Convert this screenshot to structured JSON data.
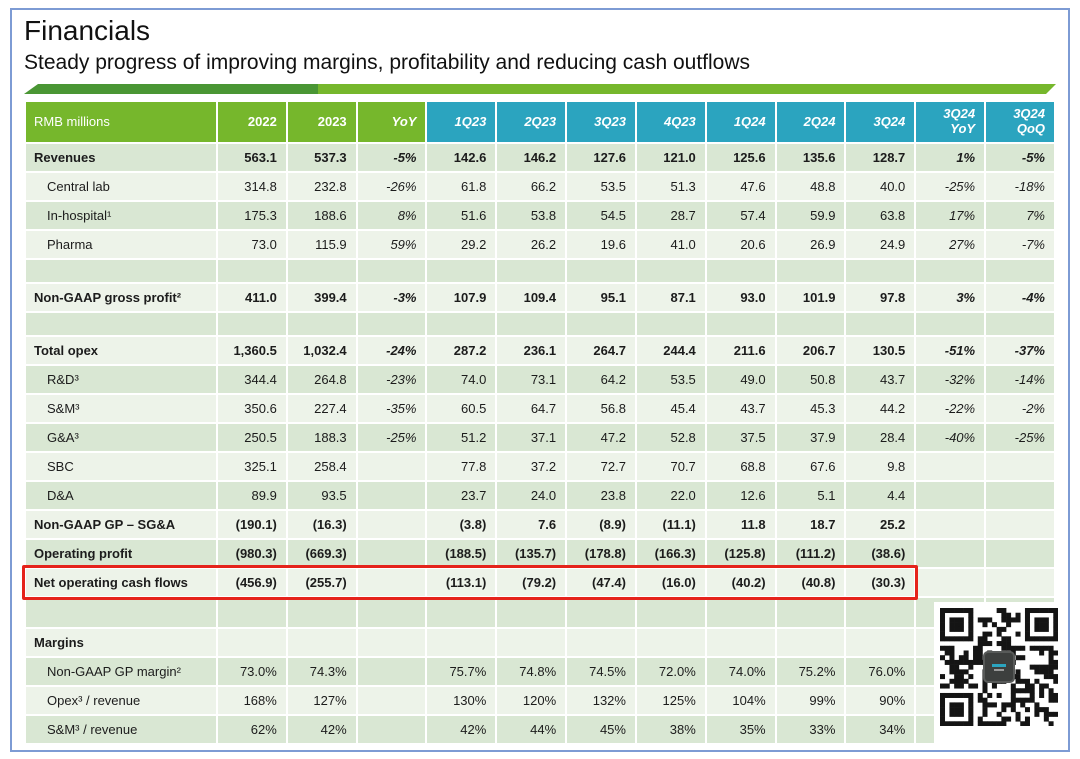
{
  "page": {
    "title": "Financials",
    "subtitle": "Steady progress of improving margins, profitability and reducing cash outflows"
  },
  "colors": {
    "header_green": "#76b72c",
    "header_teal": "#2ba4bf",
    "divider_dark_green": "#4a9634",
    "divider_light_green": "#76b72c",
    "row_stripe_dark": "#d9e7d3",
    "row_stripe_light": "#edf3e9",
    "highlight_red": "#e5231b",
    "page_border_blue": "#7d9bd4"
  },
  "table": {
    "columns": [
      {
        "label": "RMB millions",
        "group": "annual"
      },
      {
        "label": "2022",
        "group": "annual"
      },
      {
        "label": "2023",
        "group": "annual"
      },
      {
        "label": "YoY",
        "group": "annual",
        "italic": true,
        "value_italic": true
      },
      {
        "label": "1Q23",
        "group": "quarterly",
        "italic": true
      },
      {
        "label": "2Q23",
        "group": "quarterly",
        "italic": true
      },
      {
        "label": "3Q23",
        "group": "quarterly",
        "italic": true
      },
      {
        "label": "4Q23",
        "group": "quarterly",
        "italic": true
      },
      {
        "label": "1Q24",
        "group": "quarterly",
        "italic": true
      },
      {
        "label": "2Q24",
        "group": "quarterly",
        "italic": true
      },
      {
        "label": "3Q24",
        "group": "quarterly",
        "italic": true
      },
      {
        "label": "3Q24\nYoY",
        "group": "quarterly",
        "italic": true,
        "value_italic": true
      },
      {
        "label": "3Q24\nQoQ",
        "group": "quarterly",
        "italic": true,
        "value_italic": true
      }
    ],
    "rows": [
      {
        "label": "Revenues",
        "bold": true,
        "shade": "dark",
        "values": [
          "563.1",
          "537.3",
          "-5%",
          "142.6",
          "146.2",
          "127.6",
          "121.0",
          "125.6",
          "135.6",
          "128.7",
          "1%",
          "-5%"
        ]
      },
      {
        "label": "Central lab",
        "indent": true,
        "shade": "light",
        "values": [
          "314.8",
          "232.8",
          "-26%",
          "61.8",
          "66.2",
          "53.5",
          "51.3",
          "47.6",
          "48.8",
          "40.0",
          "-25%",
          "-18%"
        ]
      },
      {
        "label": "In-hospital¹",
        "indent": true,
        "shade": "dark",
        "values": [
          "175.3",
          "188.6",
          "8%",
          "51.6",
          "53.8",
          "54.5",
          "28.7",
          "57.4",
          "59.9",
          "63.8",
          "17%",
          "7%"
        ]
      },
      {
        "label": "Pharma",
        "indent": true,
        "shade": "light",
        "values": [
          "73.0",
          "115.9",
          "59%",
          "29.2",
          "26.2",
          "19.6",
          "41.0",
          "20.6",
          "26.9",
          "24.9",
          "27%",
          "-7%"
        ]
      },
      {
        "type": "spacer",
        "shade": "dark"
      },
      {
        "label": "Non-GAAP gross profit²",
        "bold": true,
        "shade": "light",
        "values": [
          "411.0",
          "399.4",
          "-3%",
          "107.9",
          "109.4",
          "95.1",
          "87.1",
          "93.0",
          "101.9",
          "97.8",
          "3%",
          "-4%"
        ]
      },
      {
        "type": "spacer",
        "shade": "dark"
      },
      {
        "label": "Total opex",
        "bold": true,
        "shade": "light",
        "values": [
          "1,360.5",
          "1,032.4",
          "-24%",
          "287.2",
          "236.1",
          "264.7",
          "244.4",
          "211.6",
          "206.7",
          "130.5",
          "-51%",
          "-37%"
        ]
      },
      {
        "label": "R&D³",
        "indent": true,
        "shade": "dark",
        "values": [
          "344.4",
          "264.8",
          "-23%",
          "74.0",
          "73.1",
          "64.2",
          "53.5",
          "49.0",
          "50.8",
          "43.7",
          "-32%",
          "-14%"
        ]
      },
      {
        "label": "S&M³",
        "indent": true,
        "shade": "light",
        "values": [
          "350.6",
          "227.4",
          "-35%",
          "60.5",
          "64.7",
          "56.8",
          "45.4",
          "43.7",
          "45.3",
          "44.2",
          "-22%",
          "-2%"
        ]
      },
      {
        "label": "G&A³",
        "indent": true,
        "shade": "dark",
        "values": [
          "250.5",
          "188.3",
          "-25%",
          "51.2",
          "37.1",
          "47.2",
          "52.8",
          "37.5",
          "37.9",
          "28.4",
          "-40%",
          "-25%"
        ]
      },
      {
        "label": "SBC",
        "indent": true,
        "shade": "light",
        "values": [
          "325.1",
          "258.4",
          "",
          "77.8",
          "37.2",
          "72.7",
          "70.7",
          "68.8",
          "67.6",
          "9.8",
          "",
          ""
        ]
      },
      {
        "label": "D&A",
        "indent": true,
        "shade": "dark",
        "values": [
          "89.9",
          "93.5",
          "",
          "23.7",
          "24.0",
          "23.8",
          "22.0",
          "12.6",
          "5.1",
          "4.4",
          "",
          ""
        ]
      },
      {
        "label": "Non-GAAP GP – SG&A",
        "bold": true,
        "shade": "light",
        "values": [
          "(190.1)",
          "(16.3)",
          "",
          "(3.8)",
          "7.6",
          "(8.9)",
          "(11.1)",
          "11.8",
          "18.7",
          "25.2",
          "",
          ""
        ]
      },
      {
        "label": "Operating profit",
        "bold": true,
        "shade": "dark",
        "values": [
          "(980.3)",
          "(669.3)",
          "",
          "(188.5)",
          "(135.7)",
          "(178.8)",
          "(166.3)",
          "(125.8)",
          "(111.2)",
          "(38.6)",
          "",
          ""
        ]
      },
      {
        "label": "Net operating cash flows",
        "bold": true,
        "highlight": true,
        "shade": "light",
        "values": [
          "(456.9)",
          "(255.7)",
          "",
          "(113.1)",
          "(79.2)",
          "(47.4)",
          "(16.0)",
          "(40.2)",
          "(40.8)",
          "(30.3)",
          "",
          ""
        ]
      },
      {
        "type": "spacer",
        "tall": true,
        "shade": "dark"
      },
      {
        "label": "Margins",
        "bold": true,
        "shade": "light",
        "values": [
          "",
          "",
          "",
          "",
          "",
          "",
          "",
          "",
          "",
          "",
          "",
          ""
        ]
      },
      {
        "label": "Non-GAAP GP margin²",
        "indent": true,
        "shade": "dark",
        "values": [
          "73.0%",
          "74.3%",
          "",
          "75.7%",
          "74.8%",
          "74.5%",
          "72.0%",
          "74.0%",
          "75.2%",
          "76.0%",
          "",
          ""
        ]
      },
      {
        "label": "Opex³ / revenue",
        "indent": true,
        "shade": "light",
        "values": [
          "168%",
          "127%",
          "",
          "130%",
          "120%",
          "132%",
          "125%",
          "104%",
          "99%",
          "90%",
          "",
          ""
        ]
      },
      {
        "label": "S&M³ / revenue",
        "indent": true,
        "shade": "dark",
        "values": [
          "62%",
          "42%",
          "",
          "42%",
          "44%",
          "45%",
          "38%",
          "35%",
          "33%",
          "34%",
          "",
          ""
        ]
      }
    ],
    "highlight_span_note": "red box spans label column through 3Q24 column"
  },
  "qr": {
    "name": "wechat-qr-code",
    "modules": 25,
    "has_center_logo": true
  }
}
